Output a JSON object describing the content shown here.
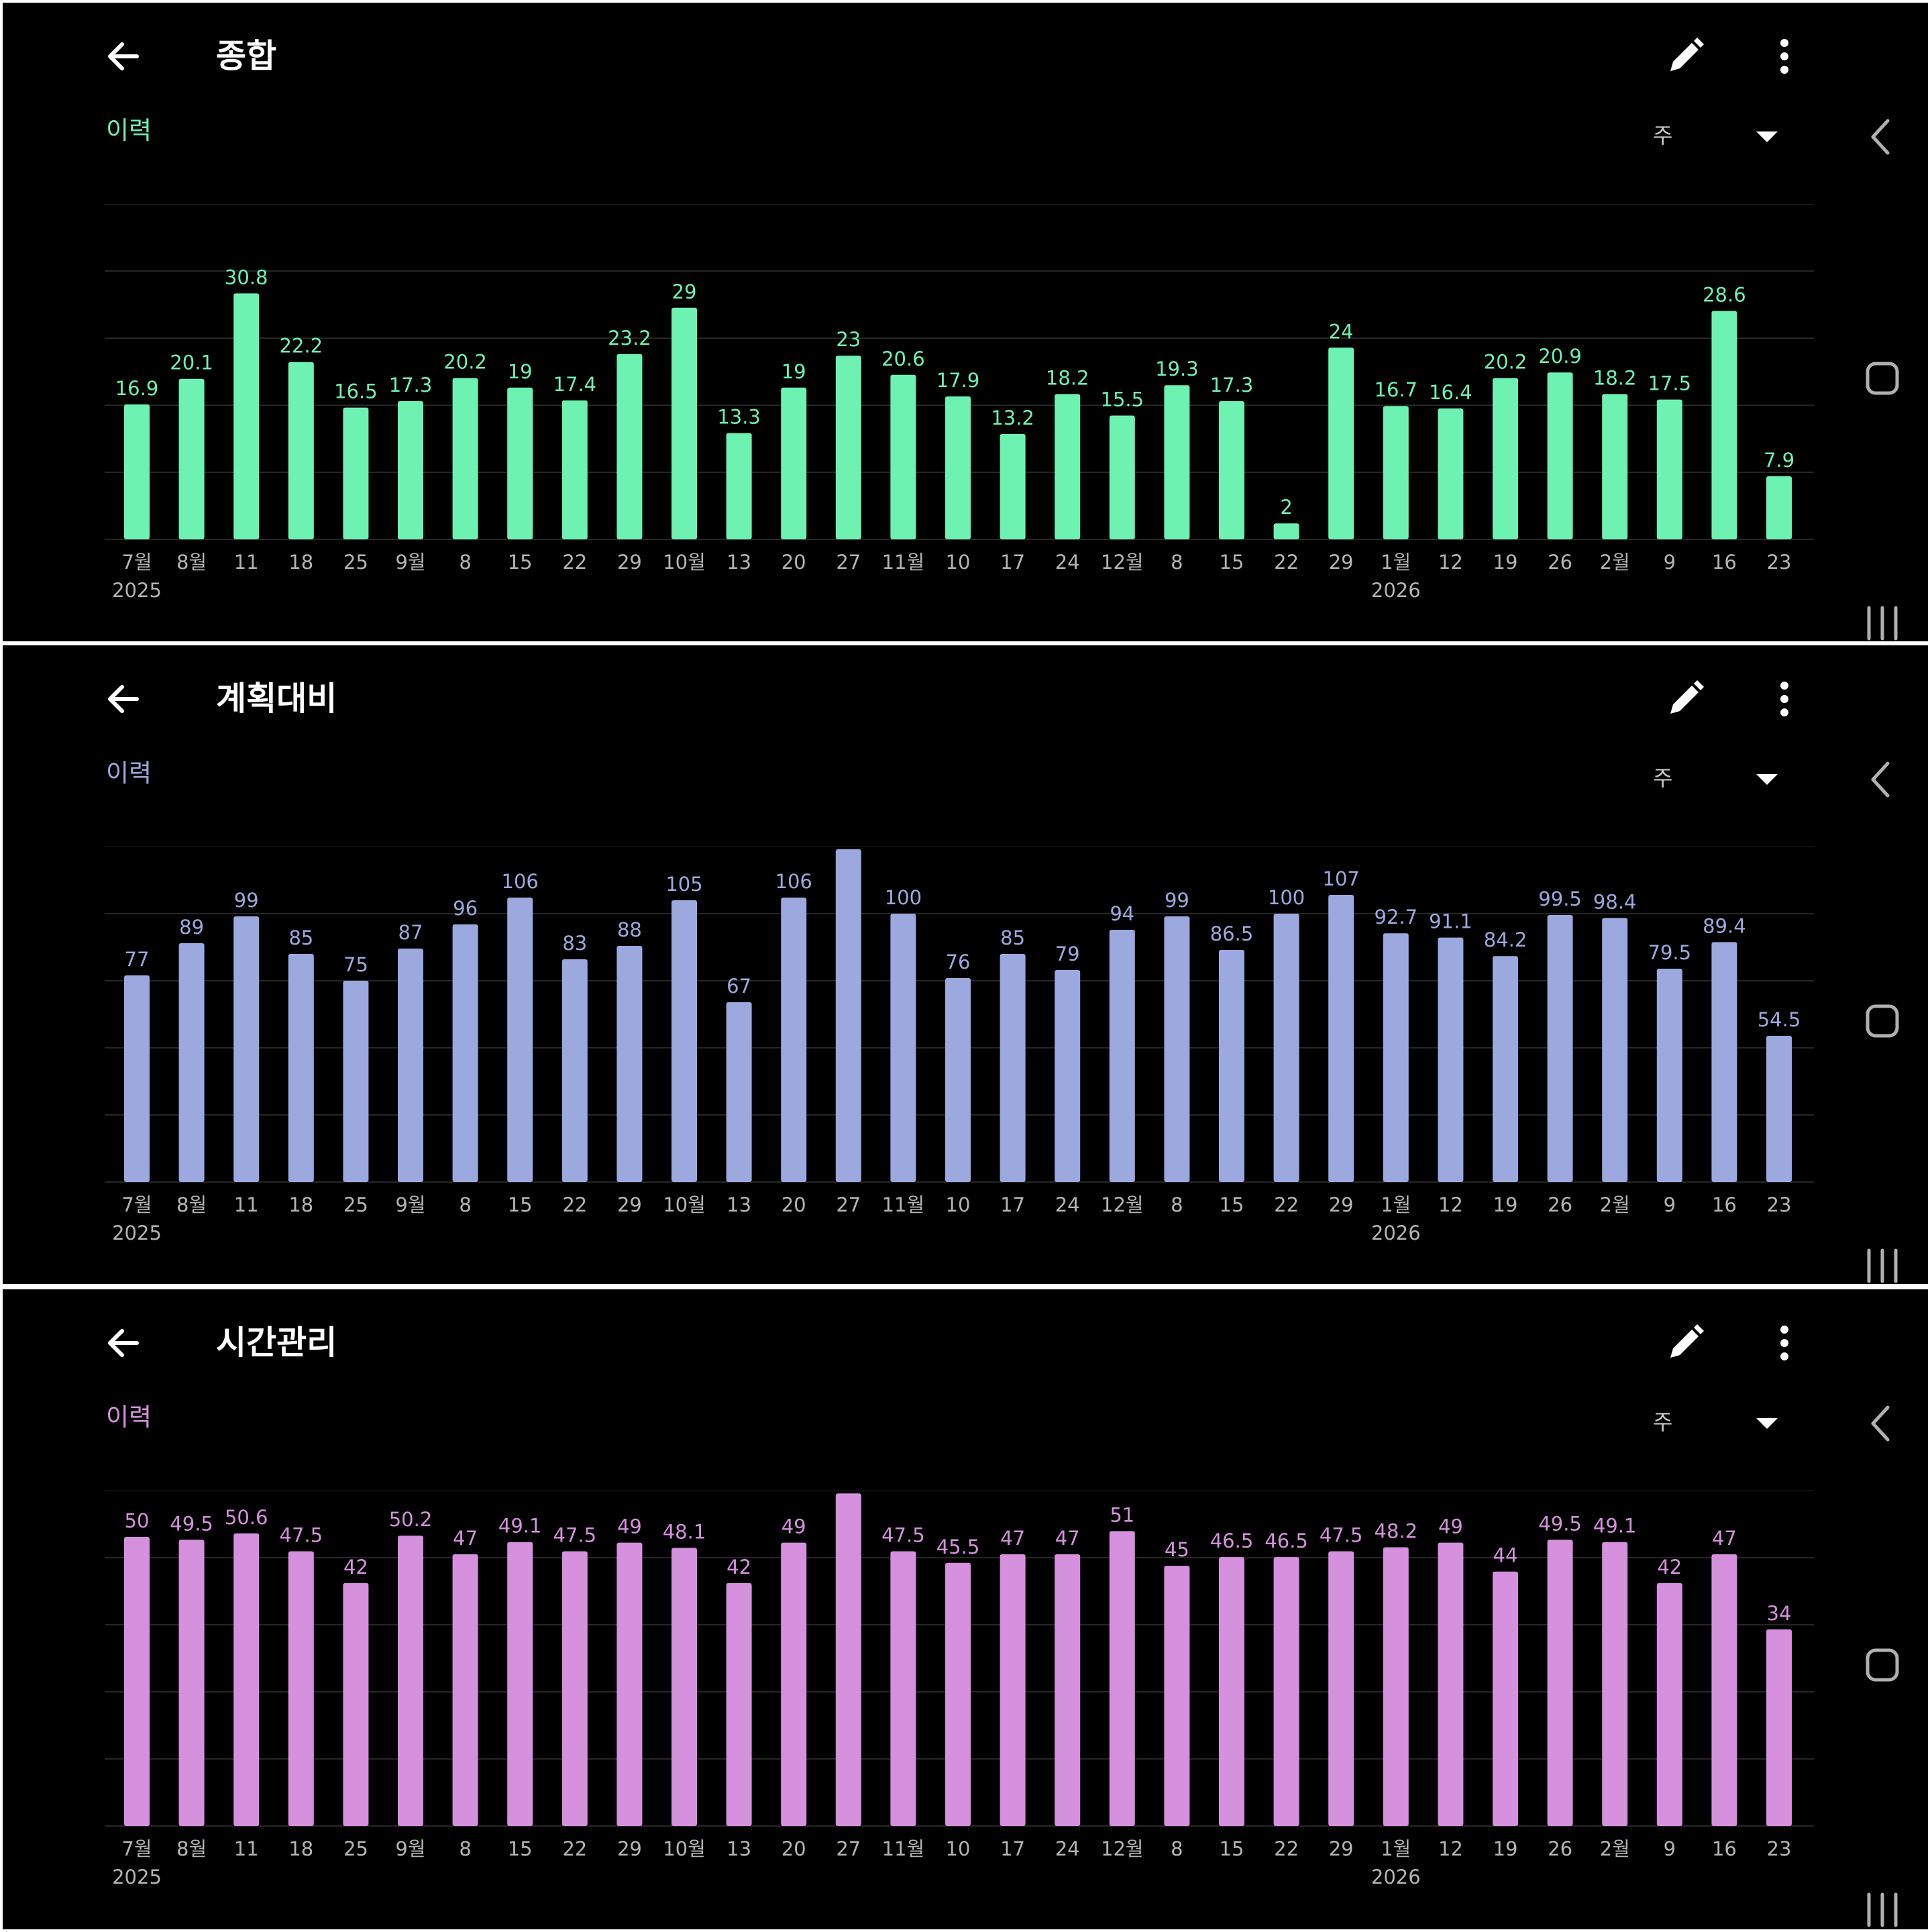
{
  "screens": [
    {
      "title": "종합",
      "history_label": "이력",
      "period": "주",
      "accent": "#6ef2b1",
      "icons": [
        "back-arrow-icon",
        "pencil-icon",
        "more-vert-icon",
        "dropdown-arrow-icon"
      ]
    },
    {
      "title": "계획대비",
      "history_label": "이력",
      "period": "주",
      "accent": "#9ba9de",
      "icons": [
        "back-arrow-icon",
        "pencil-icon",
        "more-vert-icon",
        "dropdown-arrow-icon"
      ]
    },
    {
      "title": "시간관리",
      "history_label": "이력",
      "period": "주",
      "accent": "#d591dd",
      "icons": [
        "back-arrow-icon",
        "pencil-icon",
        "more-vert-icon",
        "dropdown-arrow-icon"
      ]
    }
  ],
  "navigation_bar": {
    "icons": [
      "nav-back-icon",
      "nav-home-icon",
      "nav-recents-icon"
    ]
  },
  "chart_data": [
    {
      "type": "bar",
      "categories": [
        "7월",
        "8월",
        "11",
        "18",
        "25",
        "9월",
        "8",
        "15",
        "22",
        "29",
        "10월",
        "13",
        "20",
        "27",
        "11월",
        "10",
        "17",
        "24",
        "12월",
        "8",
        "15",
        "22",
        "29",
        "1월",
        "12",
        "19",
        "26",
        "2월",
        "9",
        "16",
        "23"
      ],
      "year_labels": [
        "2025",
        "",
        "",
        "",
        "",
        "",
        "",
        "",
        "",
        "",
        "",
        "",
        "",
        "",
        "",
        "",
        "",
        "",
        "",
        "",
        "",
        "",
        "",
        "2026",
        "",
        "",
        "",
        "",
        "",
        "",
        ""
      ],
      "values": [
        16.9,
        20.1,
        30.8,
        22.2,
        16.5,
        17.3,
        20.2,
        19,
        17.4,
        23.2,
        29,
        13.3,
        19,
        23,
        20.6,
        17.9,
        13.2,
        18.2,
        15.5,
        19.3,
        17.3,
        2,
        24,
        16.7,
        16.4,
        20.2,
        20.9,
        18.2,
        17.5,
        28.6,
        7.9
      ],
      "ylim": [
        0,
        42
      ],
      "grid": true,
      "bar_color": "#6ef2b1"
    },
    {
      "type": "bar",
      "categories": [
        "7월",
        "8월",
        "11",
        "18",
        "25",
        "9월",
        "8",
        "15",
        "22",
        "29",
        "10월",
        "13",
        "20",
        "27",
        "11월",
        "10",
        "17",
        "24",
        "12월",
        "8",
        "15",
        "22",
        "29",
        "1월",
        "12",
        "19",
        "26",
        "2월",
        "9",
        "16",
        "23"
      ],
      "year_labels": [
        "2025",
        "",
        "",
        "",
        "",
        "",
        "",
        "",
        "",
        "",
        "",
        "",
        "",
        "",
        "",
        "",
        "",
        "",
        "",
        "",
        "",
        "",
        "",
        "2026",
        "",
        "",
        "",
        "",
        "",
        "",
        ""
      ],
      "values": [
        77,
        89,
        99,
        85,
        75,
        87,
        96,
        106,
        83,
        88,
        105,
        67,
        106,
        124,
        100,
        76,
        85,
        79,
        94,
        99,
        86.5,
        100,
        107,
        92.7,
        91.1,
        84.2,
        99.5,
        98.4,
        79.5,
        89.4,
        54.5
      ],
      "ylim": [
        0,
        125
      ],
      "grid": true,
      "bar_color": "#9ba9de"
    },
    {
      "type": "bar",
      "categories": [
        "7월",
        "8월",
        "11",
        "18",
        "25",
        "9월",
        "8",
        "15",
        "22",
        "29",
        "10월",
        "13",
        "20",
        "27",
        "11월",
        "10",
        "17",
        "24",
        "12월",
        "8",
        "15",
        "22",
        "29",
        "1월",
        "12",
        "19",
        "26",
        "2월",
        "9",
        "16",
        "23"
      ],
      "year_labels": [
        "2025",
        "",
        "",
        "",
        "",
        "",
        "",
        "",
        "",
        "",
        "",
        "",
        "",
        "",
        "",
        "",
        "",
        "",
        "",
        "",
        "",
        "",
        "",
        "2026",
        "",
        "",
        "",
        "",
        "",
        "",
        ""
      ],
      "values": [
        50,
        49.5,
        50.6,
        47.5,
        42,
        50.2,
        47,
        49.1,
        47.5,
        49,
        48.1,
        42,
        49,
        57.5,
        47.5,
        45.5,
        47,
        47,
        51,
        45,
        46.5,
        46.5,
        47.5,
        48.2,
        49,
        44,
        49.5,
        49.1,
        42,
        47,
        34
      ],
      "ylim": [
        0,
        58
      ],
      "grid": true,
      "bar_color": "#d591dd"
    }
  ]
}
